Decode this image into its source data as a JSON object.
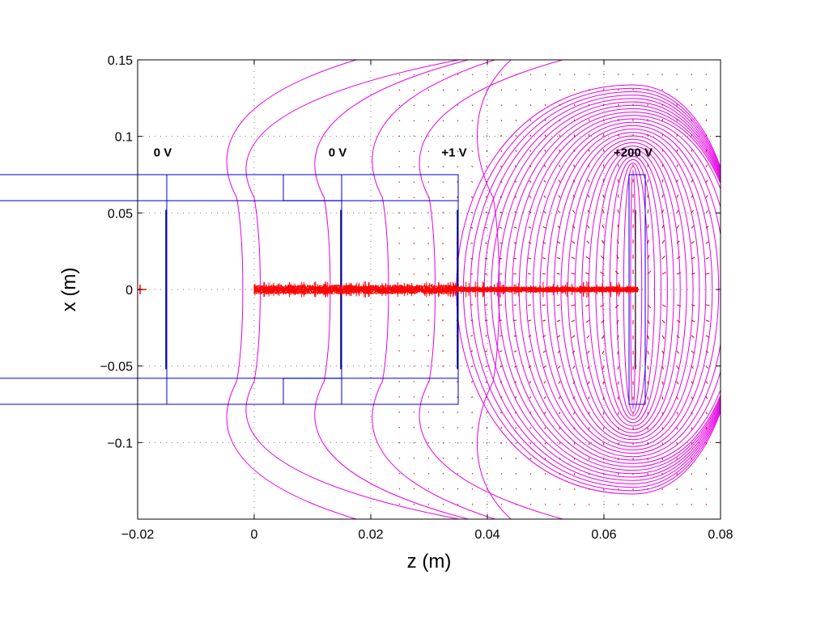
{
  "chart_data": {
    "type": "field-plot",
    "xlabel": "z (m)",
    "ylabel": "x (m)",
    "xlim": [
      -0.02,
      0.08
    ],
    "ylim": [
      -0.15,
      0.15
    ],
    "grid": true,
    "x_ticks": [
      -0.02,
      0,
      0.02,
      0.04,
      0.06,
      0.08
    ],
    "x_tick_labels": [
      "−0.02",
      "0",
      "0.02",
      "0.04",
      "0.06",
      "0.08"
    ],
    "y_ticks": [
      -0.1,
      -0.05,
      0,
      0.05,
      0.1,
      0.15
    ],
    "y_tick_labels": [
      "−0.1",
      "−0.05",
      "0",
      "0.05",
      "0.1",
      "0.15"
    ],
    "electrodes": [
      {
        "z": -0.015,
        "voltage_label": "0 V",
        "inner_x": 0.058,
        "outer_x": 0.075,
        "width": 0.004
      },
      {
        "z": 0.015,
        "voltage_label": "0 V",
        "inner_x": 0.058,
        "outer_x": 0.075,
        "width": 0.004
      },
      {
        "z": 0.035,
        "voltage_label": "+1 V",
        "inner_x": 0.058,
        "outer_x": 0.075,
        "width": 0.004
      },
      {
        "z": 0.065,
        "voltage_label": "+200 V",
        "inner_x": -0.075,
        "outer_x": 0.075,
        "width": 0.002
      }
    ],
    "beam": {
      "z_start": 0.0,
      "z_end": 0.066,
      "x_spread": 0.003,
      "source_z": -0.02
    },
    "series": [
      {
        "name": "equipotential lines",
        "color": "#e600e6"
      },
      {
        "name": "particle trajectories",
        "color": "#ff0000"
      },
      {
        "name": "electrodes",
        "color": "#0000cc"
      },
      {
        "name": "field vectors",
        "color": "#cc0000"
      }
    ]
  }
}
